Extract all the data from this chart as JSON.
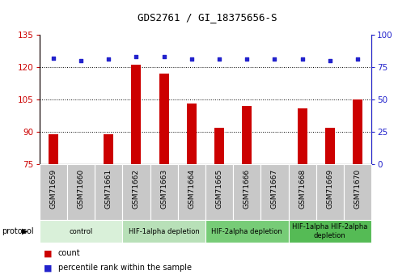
{
  "title": "GDS2761 / GI_18375656-S",
  "samples": [
    "GSM71659",
    "GSM71660",
    "GSM71661",
    "GSM71662",
    "GSM71663",
    "GSM71664",
    "GSM71665",
    "GSM71666",
    "GSM71667",
    "GSM71668",
    "GSM71669",
    "GSM71670"
  ],
  "count_values": [
    89,
    75,
    89,
    121,
    117,
    103,
    92,
    102,
    75,
    101,
    92,
    105
  ],
  "percentile_values": [
    82,
    80,
    81,
    83,
    83,
    81,
    81,
    81,
    81,
    81,
    80,
    81
  ],
  "ylim_left": [
    75,
    135
  ],
  "yticks_left": [
    75,
    90,
    105,
    120,
    135
  ],
  "ylim_right": [
    0,
    100
  ],
  "yticks_right": [
    0,
    25,
    50,
    75,
    100
  ],
  "bar_color": "#cc0000",
  "dot_color": "#2222cc",
  "bar_bottom": 75,
  "bar_width": 0.35,
  "protocol_groups": [
    {
      "label": "control",
      "start": 0,
      "end": 2,
      "color": "#d9f0d9"
    },
    {
      "label": "HIF-1alpha depletion",
      "start": 3,
      "end": 5,
      "color": "#b8e0b8"
    },
    {
      "label": "HIF-2alpha depletion",
      "start": 6,
      "end": 8,
      "color": "#77cc77"
    },
    {
      "label": "HIF-1alpha HIF-2alpha\ndepletion",
      "start": 9,
      "end": 11,
      "color": "#55bb55"
    }
  ],
  "tick_bg_color": "#c8c8c8",
  "legend_count_label": "count",
  "legend_pct_label": "percentile rank within the sample",
  "xlabel_protocol": "protocol"
}
